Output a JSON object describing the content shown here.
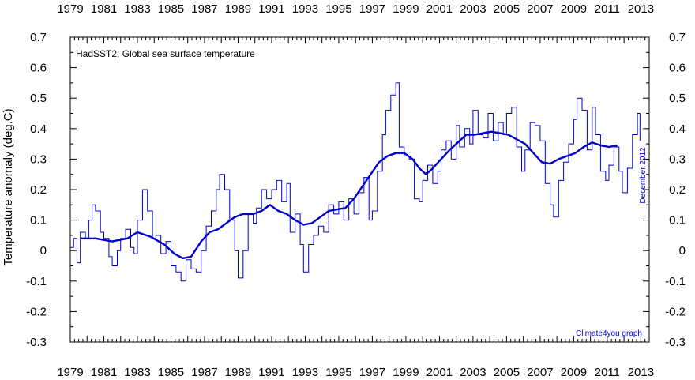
{
  "chart_data": {
    "type": "line",
    "title": "HadSST2; Global sea surface temperature",
    "ylabel": "Temperature anomaly (deg.C)",
    "xlabel": "",
    "credit": "Climate4you graph",
    "date_label": "December 2012",
    "xlim": [
      1979,
      2013.5
    ],
    "ylim": [
      -0.3,
      0.7
    ],
    "x_ticks": [
      "1979",
      "1981",
      "1983",
      "1985",
      "1987",
      "1989",
      "1991",
      "1993",
      "1995",
      "1997",
      "1999",
      "2001",
      "2003",
      "2005",
      "2007",
      "2009",
      "2011",
      "2013"
    ],
    "y_ticks": [
      "0.7",
      "0.6",
      "0.5",
      "0.4",
      "0.3",
      "0.2",
      "0.1",
      "0",
      "-0.1",
      "-0.2",
      "-0.3"
    ],
    "grid": false,
    "series": [
      {
        "style": "monthly",
        "color": "#0000cc",
        "points": [
          [
            1979.0,
            0.01
          ],
          [
            1979.2,
            0.04
          ],
          [
            1979.4,
            -0.04
          ],
          [
            1979.6,
            0.06
          ],
          [
            1979.9,
            0.04
          ],
          [
            1980.1,
            0.1
          ],
          [
            1980.3,
            0.15
          ],
          [
            1980.5,
            0.13
          ],
          [
            1980.8,
            0.06
          ],
          [
            1981.0,
            0.04
          ],
          [
            1981.3,
            -0.02
          ],
          [
            1981.5,
            -0.05
          ],
          [
            1981.8,
            0.0
          ],
          [
            1982.0,
            0.04
          ],
          [
            1982.3,
            0.07
          ],
          [
            1982.6,
            0.01
          ],
          [
            1982.8,
            -0.01
          ],
          [
            1983.0,
            0.1
          ],
          [
            1983.3,
            0.2
          ],
          [
            1983.6,
            0.13
          ],
          [
            1983.9,
            0.04
          ],
          [
            1984.1,
            0.05
          ],
          [
            1984.4,
            -0.01
          ],
          [
            1984.7,
            0.03
          ],
          [
            1985.0,
            -0.05
          ],
          [
            1985.3,
            -0.07
          ],
          [
            1985.6,
            -0.1
          ],
          [
            1985.9,
            -0.03
          ],
          [
            1986.2,
            -0.06
          ],
          [
            1986.5,
            -0.07
          ],
          [
            1986.8,
            0.0
          ],
          [
            1987.1,
            0.08
          ],
          [
            1987.4,
            0.13
          ],
          [
            1987.7,
            0.2
          ],
          [
            1987.9,
            0.25
          ],
          [
            1988.2,
            0.2
          ],
          [
            1988.5,
            0.1
          ],
          [
            1988.8,
            0.0
          ],
          [
            1989.0,
            -0.09
          ],
          [
            1989.3,
            0.0
          ],
          [
            1989.6,
            0.12
          ],
          [
            1989.9,
            0.09
          ],
          [
            1990.1,
            0.14
          ],
          [
            1990.4,
            0.2
          ],
          [
            1990.7,
            0.17
          ],
          [
            1991.0,
            0.2
          ],
          [
            1991.3,
            0.23
          ],
          [
            1991.6,
            0.16
          ],
          [
            1991.9,
            0.22
          ],
          [
            1992.1,
            0.06
          ],
          [
            1992.4,
            0.12
          ],
          [
            1992.7,
            0.02
          ],
          [
            1992.9,
            -0.07
          ],
          [
            1993.2,
            0.02
          ],
          [
            1993.5,
            0.05
          ],
          [
            1993.8,
            0.08
          ],
          [
            1994.1,
            0.06
          ],
          [
            1994.4,
            0.15
          ],
          [
            1994.7,
            0.12
          ],
          [
            1995.0,
            0.16
          ],
          [
            1995.3,
            0.1
          ],
          [
            1995.6,
            0.17
          ],
          [
            1995.9,
            0.12
          ],
          [
            1996.2,
            0.19
          ],
          [
            1996.5,
            0.24
          ],
          [
            1996.8,
            0.1
          ],
          [
            1997.0,
            0.13
          ],
          [
            1997.3,
            0.26
          ],
          [
            1997.6,
            0.38
          ],
          [
            1997.8,
            0.46
          ],
          [
            1998.1,
            0.51
          ],
          [
            1998.4,
            0.55
          ],
          [
            1998.6,
            0.34
          ],
          [
            1998.9,
            0.31
          ],
          [
            1999.2,
            0.3
          ],
          [
            1999.5,
            0.17
          ],
          [
            1999.8,
            0.16
          ],
          [
            2000.0,
            0.23
          ],
          [
            2000.3,
            0.28
          ],
          [
            2000.6,
            0.22
          ],
          [
            2000.9,
            0.26
          ],
          [
            2001.1,
            0.33
          ],
          [
            2001.4,
            0.36
          ],
          [
            2001.7,
            0.3
          ],
          [
            2002.0,
            0.41
          ],
          [
            2002.2,
            0.34
          ],
          [
            2002.5,
            0.4
          ],
          [
            2002.8,
            0.35
          ],
          [
            2003.0,
            0.46
          ],
          [
            2003.3,
            0.38
          ],
          [
            2003.6,
            0.37
          ],
          [
            2003.9,
            0.45
          ],
          [
            2004.2,
            0.36
          ],
          [
            2004.5,
            0.42
          ],
          [
            2004.8,
            0.38
          ],
          [
            2005.0,
            0.45
          ],
          [
            2005.3,
            0.47
          ],
          [
            2005.6,
            0.34
          ],
          [
            2005.9,
            0.26
          ],
          [
            2006.1,
            0.33
          ],
          [
            2006.4,
            0.42
          ],
          [
            2006.7,
            0.41
          ],
          [
            2007.0,
            0.36
          ],
          [
            2007.3,
            0.22
          ],
          [
            2007.6,
            0.15
          ],
          [
            2007.8,
            0.11
          ],
          [
            2008.1,
            0.23
          ],
          [
            2008.4,
            0.29
          ],
          [
            2008.7,
            0.35
          ],
          [
            2009.0,
            0.43
          ],
          [
            2009.2,
            0.5
          ],
          [
            2009.5,
            0.46
          ],
          [
            2009.8,
            0.33
          ],
          [
            2010.1,
            0.47
          ],
          [
            2010.3,
            0.38
          ],
          [
            2010.6,
            0.26
          ],
          [
            2010.9,
            0.23
          ],
          [
            2011.1,
            0.28
          ],
          [
            2011.4,
            0.34
          ],
          [
            2011.7,
            0.26
          ],
          [
            2011.9,
            0.19
          ],
          [
            2012.2,
            0.27
          ],
          [
            2012.5,
            0.38
          ],
          [
            2012.8,
            0.45
          ],
          [
            2012.95,
            0.36
          ]
        ]
      },
      {
        "style": "running-mean",
        "color": "#0000cc",
        "points": [
          [
            1979.6,
            0.04
          ],
          [
            1980.5,
            0.04
          ],
          [
            1981.5,
            0.03
          ],
          [
            1982.4,
            0.04
          ],
          [
            1983.0,
            0.06
          ],
          [
            1983.8,
            0.045
          ],
          [
            1984.6,
            0.02
          ],
          [
            1985.2,
            -0.01
          ],
          [
            1985.7,
            -0.025
          ],
          [
            1986.2,
            -0.02
          ],
          [
            1986.8,
            0.03
          ],
          [
            1987.3,
            0.06
          ],
          [
            1987.8,
            0.07
          ],
          [
            1988.3,
            0.09
          ],
          [
            1988.8,
            0.11
          ],
          [
            1989.3,
            0.12
          ],
          [
            1989.9,
            0.12
          ],
          [
            1990.4,
            0.13
          ],
          [
            1990.9,
            0.15
          ],
          [
            1991.4,
            0.13
          ],
          [
            1991.9,
            0.12
          ],
          [
            1992.4,
            0.1
          ],
          [
            1992.9,
            0.085
          ],
          [
            1993.4,
            0.09
          ],
          [
            1993.9,
            0.11
          ],
          [
            1994.4,
            0.13
          ],
          [
            1994.9,
            0.135
          ],
          [
            1995.4,
            0.14
          ],
          [
            1995.9,
            0.17
          ],
          [
            1996.4,
            0.21
          ],
          [
            1996.9,
            0.25
          ],
          [
            1997.4,
            0.29
          ],
          [
            1997.9,
            0.31
          ],
          [
            1998.4,
            0.32
          ],
          [
            1998.9,
            0.32
          ],
          [
            1999.4,
            0.3
          ],
          [
            1999.8,
            0.27
          ],
          [
            2000.2,
            0.25
          ],
          [
            2000.6,
            0.27
          ],
          [
            2001.1,
            0.3
          ],
          [
            2001.6,
            0.33
          ],
          [
            2002.1,
            0.355
          ],
          [
            2002.6,
            0.38
          ],
          [
            2003.1,
            0.38
          ],
          [
            2003.6,
            0.385
          ],
          [
            2004.1,
            0.39
          ],
          [
            2004.6,
            0.385
          ],
          [
            2005.1,
            0.38
          ],
          [
            2005.6,
            0.365
          ],
          [
            2006.1,
            0.35
          ],
          [
            2006.6,
            0.32
          ],
          [
            2007.1,
            0.29
          ],
          [
            2007.6,
            0.285
          ],
          [
            2008.1,
            0.3
          ],
          [
            2008.6,
            0.31
          ],
          [
            2009.1,
            0.32
          ],
          [
            2009.6,
            0.34
          ],
          [
            2010.1,
            0.355
          ],
          [
            2010.6,
            0.345
          ],
          [
            2011.1,
            0.34
          ],
          [
            2011.6,
            0.345
          ]
        ]
      }
    ]
  }
}
